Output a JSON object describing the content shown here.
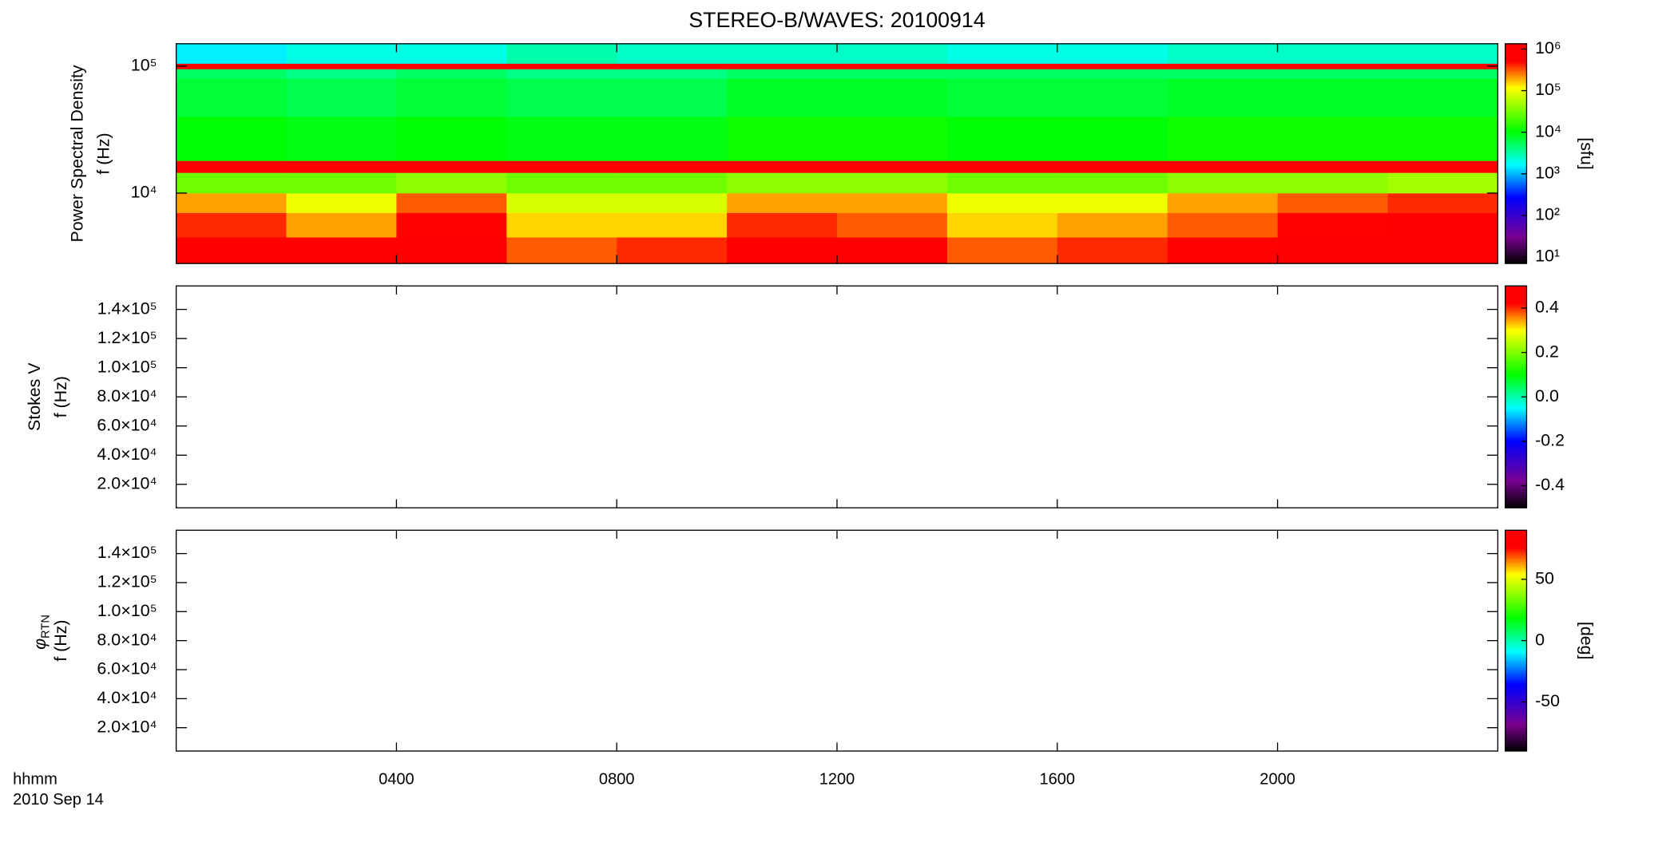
{
  "chart_data": [
    {
      "type": "heatmap",
      "title": "STEREO-B/WAVES: 20100914",
      "ylabel": [
        "Power Spectral Density",
        "f (Hz)"
      ],
      "ylog": true,
      "ylim": [
        2790,
        150000
      ],
      "yticks": [
        {
          "value": 10000,
          "label": "10⁴"
        },
        {
          "value": 100000,
          "label": "10⁵"
        }
      ],
      "time_edges": [
        0,
        2,
        4,
        6,
        8,
        10,
        12,
        14,
        16,
        18,
        20,
        22,
        24
      ],
      "freq_edges": [
        2790,
        4500,
        7000,
        10000,
        14500,
        18000,
        40000,
        80000,
        95000,
        105000,
        150000
      ],
      "values": [
        [
          800000,
          600000,
          800000,
          300000,
          400000,
          800000,
          600000,
          300000,
          400000,
          500000,
          800000,
          800000
        ],
        [
          400000,
          200000,
          500000,
          150000,
          150000,
          400000,
          300000,
          150000,
          200000,
          300000,
          500000,
          600000
        ],
        [
          200000,
          100000,
          300000,
          80000,
          80000,
          200000,
          200000,
          100000,
          100000,
          200000,
          300000,
          400000
        ],
        [
          30000,
          30000,
          40000,
          30000,
          30000,
          40000,
          40000,
          30000,
          30000,
          40000,
          40000,
          50000
        ],
        [
          1000000,
          1000000,
          1000000,
          1000000,
          1000000,
          1000000,
          1000000,
          1000000,
          1000000,
          1000000,
          1000000,
          1000000
        ],
        [
          10000,
          9000,
          10000,
          9000,
          9000,
          12000,
          12000,
          10000,
          10000,
          12000,
          12000,
          12000
        ],
        [
          7000,
          6000,
          7000,
          6000,
          6000,
          8000,
          8000,
          7000,
          7000,
          8000,
          8000,
          8000
        ],
        [
          5000,
          4000,
          5000,
          4000,
          4000,
          5000,
          5000,
          5000,
          5000,
          5000,
          5000,
          5000
        ],
        [
          1000000,
          1000000,
          1000000,
          1000000,
          1000000,
          1000000,
          1000000,
          1000000,
          1000000,
          1000000,
          1000000,
          1000000
        ],
        [
          1500,
          2000,
          2000,
          3000,
          2500,
          2500,
          2500,
          2000,
          2000,
          2500,
          2500,
          2500
        ]
      ],
      "colormap": "rainbow",
      "zlog": true,
      "zlim": [
        7,
        1340000
      ],
      "zticks": [
        {
          "value": 10,
          "label": "10¹"
        },
        {
          "value": 100,
          "label": "10²"
        },
        {
          "value": 1000,
          "label": "10³"
        },
        {
          "value": 10000,
          "label": "10⁴"
        },
        {
          "value": 100000,
          "label": "10⁵"
        },
        {
          "value": 1000000,
          "label": "10⁶"
        }
      ],
      "zlabel": "[sfu]"
    },
    {
      "type": "heatmap",
      "ylabel": [
        "Stokes V",
        "f (Hz)"
      ],
      "ylog": false,
      "ylim": [
        3900,
        156100
      ],
      "yticks": [
        {
          "value": 20000,
          "label": "2.0×10⁴"
        },
        {
          "value": 40000,
          "label": "4.0×10⁴"
        },
        {
          "value": 60000,
          "label": "6.0×10⁴"
        },
        {
          "value": 80000,
          "label": "8.0×10⁴"
        },
        {
          "value": 100000,
          "label": "1.0×10⁵"
        },
        {
          "value": 120000,
          "label": "1.2×10⁵"
        },
        {
          "value": 140000,
          "label": "1.4×10⁵"
        }
      ],
      "colormap": "rainbow",
      "zlog": false,
      "zlim": [
        -0.5,
        0.5
      ],
      "zticks": [
        -0.4,
        -0.2,
        {
          "value": 0,
          "label": "0.0"
        },
        0.2,
        0.4
      ]
    },
    {
      "type": "heatmap",
      "ylabel_symbol": "φ",
      "ylabel_subscript": "RTN",
      "ylabel": [
        "f (Hz)"
      ],
      "ylog": false,
      "ylim": [
        3900,
        156100
      ],
      "yticks": [
        {
          "value": 20000,
          "label": "2.0×10⁴"
        },
        {
          "value": 40000,
          "label": "4.0×10⁴"
        },
        {
          "value": 60000,
          "label": "6.0×10⁴"
        },
        {
          "value": 80000,
          "label": "8.0×10⁴"
        },
        {
          "value": 100000,
          "label": "1.0×10⁵"
        },
        {
          "value": 120000,
          "label": "1.2×10⁵"
        },
        {
          "value": 140000,
          "label": "1.4×10⁵"
        }
      ],
      "colormap": "rainbow",
      "zlog": false,
      "zlim": [
        -90,
        90
      ],
      "zticks": [
        -50,
        0,
        50
      ],
      "zlabel": "[deg]",
      "xlim": [
        0,
        24
      ],
      "xticks": [
        {
          "value": 4,
          "label": "0400"
        },
        {
          "value": 8,
          "label": "0800"
        },
        {
          "value": 12,
          "label": "1200"
        },
        {
          "value": 16,
          "label": "1600"
        },
        {
          "value": 20,
          "label": "2000"
        }
      ],
      "xlabel": [
        "hhmm",
        "2010 Sep 14"
      ]
    }
  ]
}
